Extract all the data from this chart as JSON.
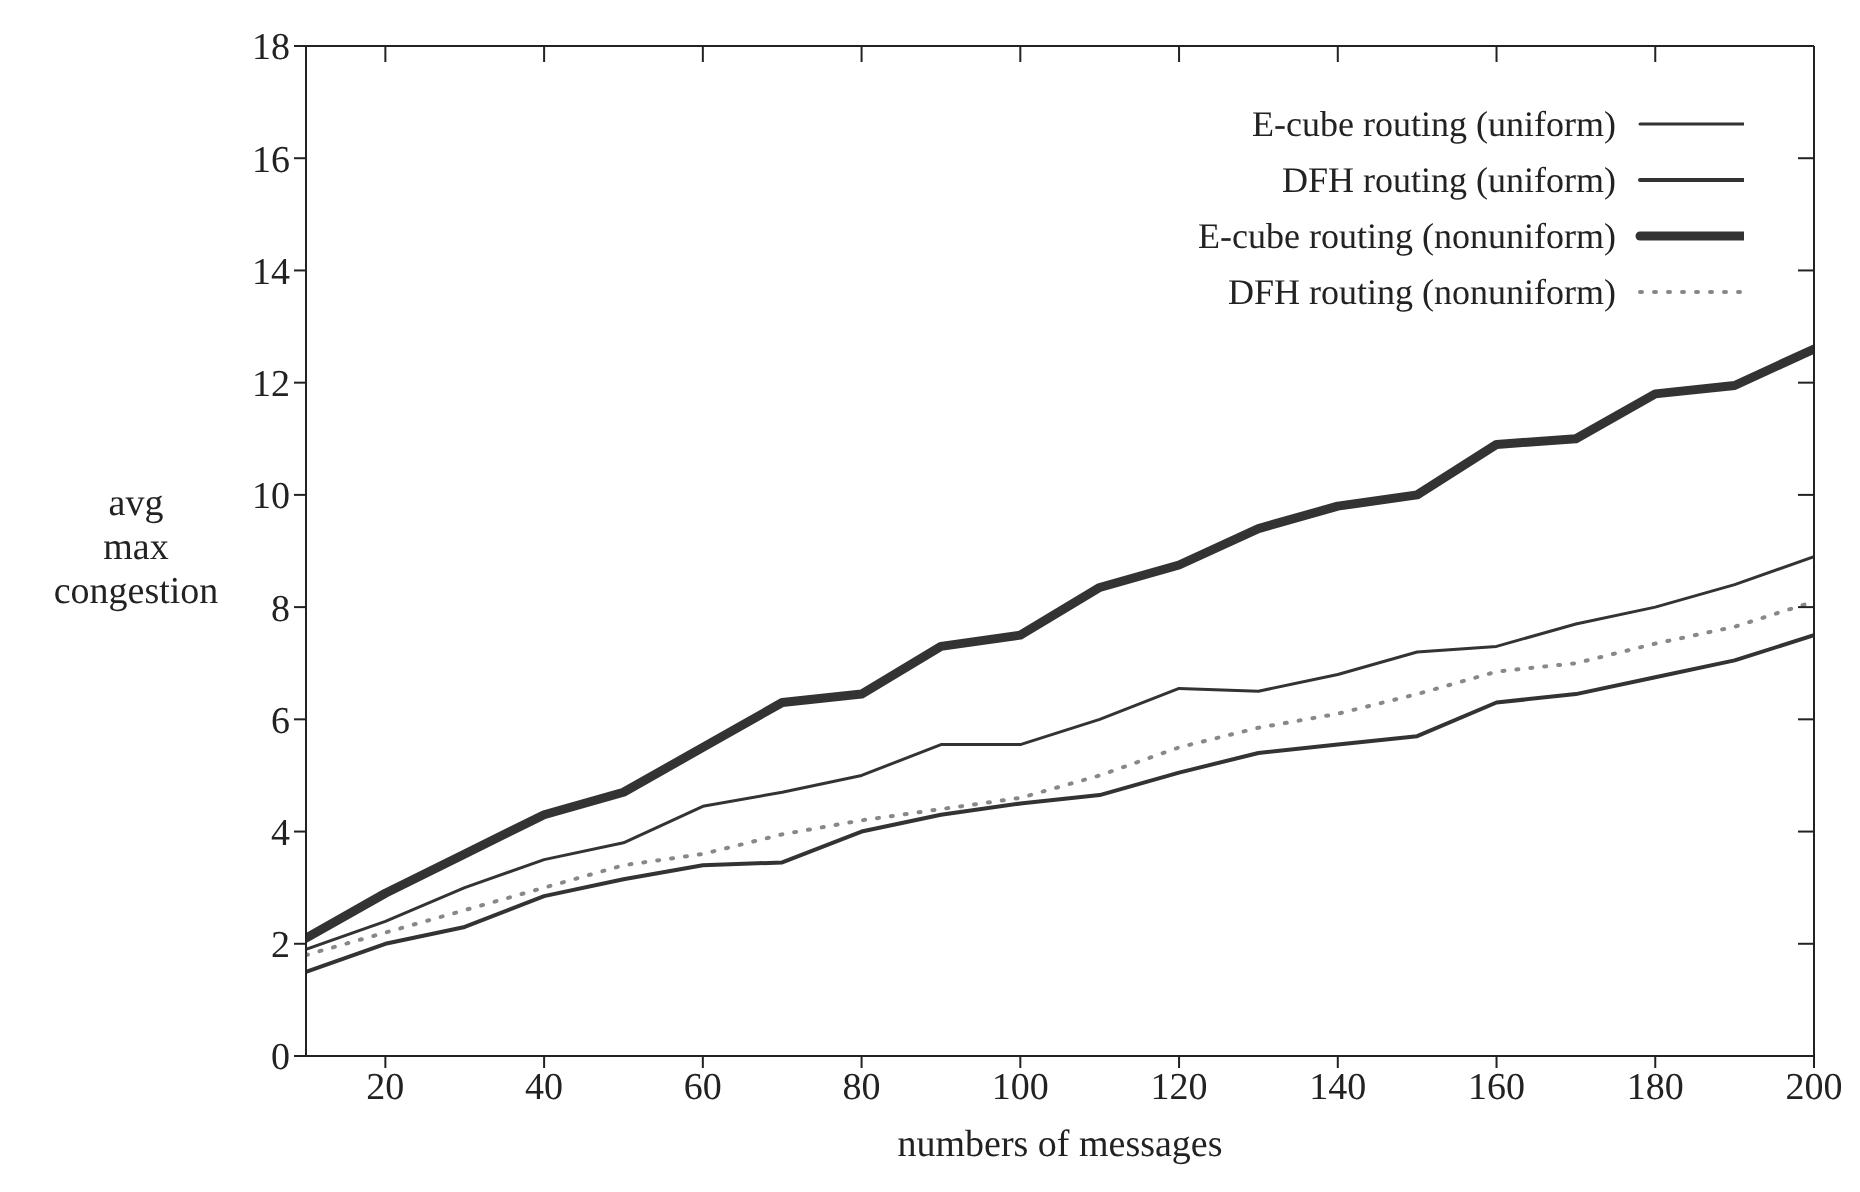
{
  "chart_data": {
    "type": "line",
    "xlabel": "numbers of messages",
    "ylabel": "avg max congestion",
    "x": [
      10,
      20,
      30,
      40,
      50,
      60,
      70,
      80,
      90,
      100,
      110,
      120,
      130,
      140,
      150,
      160,
      170,
      180,
      190,
      200
    ],
    "series": [
      {
        "name": "E-cube routing (uniform)",
        "color": "#333333",
        "line_style": "solid",
        "values": [
          1.9,
          2.4,
          3.0,
          3.5,
          3.8,
          4.45,
          4.7,
          5.0,
          5.55,
          5.55,
          6.0,
          6.55,
          6.5,
          6.8,
          7.2,
          7.3,
          7.7,
          8.0,
          8.4,
          8.9
        ]
      },
      {
        "name": "DFH routing (uniform)",
        "color": "#333333",
        "line_style": "solid",
        "values": [
          1.5,
          2.0,
          2.3,
          2.85,
          3.15,
          3.4,
          3.45,
          4.0,
          4.3,
          4.5,
          4.65,
          5.05,
          5.4,
          5.55,
          5.7,
          6.3,
          6.45,
          6.75,
          7.05,
          7.5
        ]
      },
      {
        "name": "E-cube routing (nonuniform)",
        "color": "#333333",
        "line_style": "solid",
        "values": [
          2.1,
          2.9,
          3.6,
          4.3,
          4.7,
          5.5,
          6.3,
          6.45,
          7.3,
          7.5,
          8.35,
          8.75,
          9.4,
          9.8,
          10.0,
          10.9,
          11.0,
          11.8,
          11.95,
          12.6
        ]
      },
      {
        "name": "DFH routing (nonuniform)",
        "color": "#888888",
        "line_style": "dotted",
        "values": [
          1.8,
          2.2,
          2.6,
          3.0,
          3.4,
          3.6,
          3.95,
          4.2,
          4.4,
          4.6,
          5.0,
          5.5,
          5.85,
          6.1,
          6.45,
          6.85,
          7.0,
          7.35,
          7.65,
          8.1
        ]
      }
    ],
    "xlim": [
      10,
      200
    ],
    "xticks": [
      20,
      40,
      60,
      80,
      100,
      120,
      140,
      160,
      180,
      200
    ],
    "ylim": [
      0,
      18
    ],
    "yticks": [
      0,
      2,
      4,
      6,
      8,
      10,
      12,
      14,
      16,
      18
    ],
    "grid": false,
    "legend": "top right",
    "marker": "none"
  }
}
